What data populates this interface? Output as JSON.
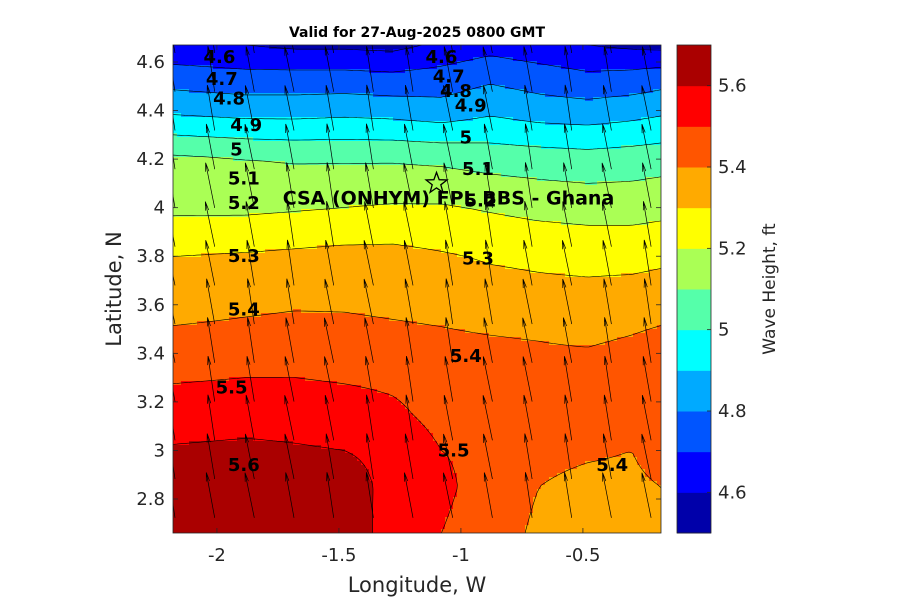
{
  "chart_data": {
    "type": "contour",
    "title": "Valid for 27-Aug-2025 0800 GMT",
    "xlabel": "Longitude, W",
    "ylabel": "Latitude, N",
    "colorbar_label": "Wave Height, ft",
    "xlim": [
      -2.18,
      -0.18
    ],
    "ylim": [
      2.66,
      4.67
    ],
    "x_ticks": [
      -2,
      -1.5,
      -1,
      -0.5
    ],
    "x_tick_labels": [
      "-2",
      "-1.5",
      "-1",
      "-0.5"
    ],
    "y_ticks": [
      2.8,
      3,
      3.2,
      3.4,
      3.6,
      3.8,
      4,
      4.2,
      4.4,
      4.6
    ],
    "y_tick_labels": [
      "2.8",
      "3",
      "3.2",
      "3.4",
      "3.6",
      "3.8",
      "4",
      "4.2",
      "4.4",
      "4.6"
    ],
    "clim": [
      4.5,
      5.7
    ],
    "colorbar_ticks": [
      4.6,
      4.8,
      5,
      5.2,
      5.4,
      5.6
    ],
    "colorbar_tick_labels": [
      "4.6",
      "4.8",
      "5",
      "5.2",
      "5.4",
      "5.6"
    ],
    "colormap": [
      "#0000aa",
      "#0000ff",
      "#0055ff",
      "#00aaff",
      "#00ffff",
      "#55ffaa",
      "#aaff55",
      "#ffff00",
      "#ffaa00",
      "#ff5500",
      "#ff0000",
      "#aa0000"
    ],
    "contour_levels": [
      4.6,
      4.7,
      4.8,
      4.9,
      5.0,
      5.1,
      5.2,
      5.3,
      5.4,
      5.5,
      5.6
    ],
    "grid_lon": [
      -2.18,
      -1.88,
      -1.68,
      -1.48,
      -1.28,
      -1.08,
      -0.88,
      -0.68,
      -0.48,
      -0.3,
      -0.18
    ],
    "grid_lat": [
      2.66,
      2.85,
      3.0,
      3.15,
      3.3,
      3.45,
      3.6,
      3.8,
      4.0,
      4.2,
      4.4,
      4.55,
      4.67
    ],
    "wave_height": [
      [
        5.63,
        5.64,
        5.66,
        5.67,
        5.55,
        5.5,
        5.45,
        5.38,
        5.36,
        5.37,
        5.38
      ],
      [
        5.64,
        5.66,
        5.68,
        5.66,
        5.56,
        5.52,
        5.46,
        5.4,
        5.38,
        5.38,
        5.4
      ],
      [
        5.61,
        5.62,
        5.61,
        5.6,
        5.57,
        5.5,
        5.48,
        5.42,
        5.41,
        5.4,
        5.44
      ],
      [
        5.55,
        5.56,
        5.56,
        5.55,
        5.52,
        5.47,
        5.46,
        5.44,
        5.45,
        5.45,
        5.47
      ],
      [
        5.49,
        5.5,
        5.5,
        5.49,
        5.48,
        5.46,
        5.45,
        5.44,
        5.45,
        5.47,
        5.48
      ],
      [
        5.43,
        5.44,
        5.45,
        5.44,
        5.43,
        5.42,
        5.41,
        5.4,
        5.39,
        5.41,
        5.43
      ],
      [
        5.36,
        5.38,
        5.39,
        5.39,
        5.38,
        5.37,
        5.35,
        5.34,
        5.34,
        5.35,
        5.36
      ],
      [
        5.3,
        5.31,
        5.32,
        5.33,
        5.33,
        5.31,
        5.29,
        5.28,
        5.27,
        5.27,
        5.28
      ],
      [
        5.18,
        5.18,
        5.19,
        5.2,
        5.21,
        5.21,
        5.19,
        5.17,
        5.16,
        5.16,
        5.17
      ],
      [
        5.12,
        5.1,
        5.09,
        5.09,
        5.09,
        5.08,
        5.06,
        5.05,
        5.04,
        5.05,
        5.06
      ],
      [
        4.88,
        4.86,
        4.86,
        4.87,
        4.86,
        4.84,
        4.88,
        4.85,
        4.84,
        4.86,
        4.88
      ],
      [
        4.74,
        4.72,
        4.72,
        4.72,
        4.71,
        4.73,
        4.77,
        4.74,
        4.71,
        4.72,
        4.74
      ],
      [
        4.62,
        4.6,
        4.58,
        4.58,
        4.57,
        4.62,
        4.66,
        4.63,
        4.6,
        4.58,
        4.57
      ]
    ],
    "contour_labels": [
      {
        "text": "4.6",
        "lon": -1.99,
        "lat": 4.62
      },
      {
        "text": "4.7",
        "lon": -1.98,
        "lat": 4.53
      },
      {
        "text": "4.8",
        "lon": -1.95,
        "lat": 4.45
      },
      {
        "text": "4.9",
        "lon": -1.88,
        "lat": 4.34
      },
      {
        "text": "5",
        "lon": -1.92,
        "lat": 4.24
      },
      {
        "text": "5.1",
        "lon": -1.89,
        "lat": 4.12
      },
      {
        "text": "5.2",
        "lon": -1.89,
        "lat": 4.02
      },
      {
        "text": "5.3",
        "lon": -1.89,
        "lat": 3.8
      },
      {
        "text": "5.4",
        "lon": -1.89,
        "lat": 3.58
      },
      {
        "text": "5.5",
        "lon": -1.94,
        "lat": 3.26
      },
      {
        "text": "5.6",
        "lon": -1.89,
        "lat": 2.94
      },
      {
        "text": "4.6",
        "lon": -1.08,
        "lat": 4.62
      },
      {
        "text": "4.7",
        "lon": -1.05,
        "lat": 4.54
      },
      {
        "text": "4.8",
        "lon": -1.02,
        "lat": 4.48
      },
      {
        "text": "4.9",
        "lon": -0.96,
        "lat": 4.42
      },
      {
        "text": "5",
        "lon": -0.98,
        "lat": 4.29
      },
      {
        "text": "5.1",
        "lon": -0.93,
        "lat": 4.16
      },
      {
        "text": "5.2",
        "lon": -0.92,
        "lat": 4.03
      },
      {
        "text": "5.3",
        "lon": -0.93,
        "lat": 3.79
      },
      {
        "text": "5.4",
        "lon": -0.98,
        "lat": 3.39
      },
      {
        "text": "5.5",
        "lon": -1.03,
        "lat": 3.0
      },
      {
        "text": "5.4",
        "lon": -0.38,
        "lat": 2.94
      }
    ],
    "site": {
      "label": "CSA (ONHYM) FPL BBS - Ghana",
      "lon": -1.1,
      "lat": 4.1
    },
    "wave_direction_to_deg": 350
  }
}
